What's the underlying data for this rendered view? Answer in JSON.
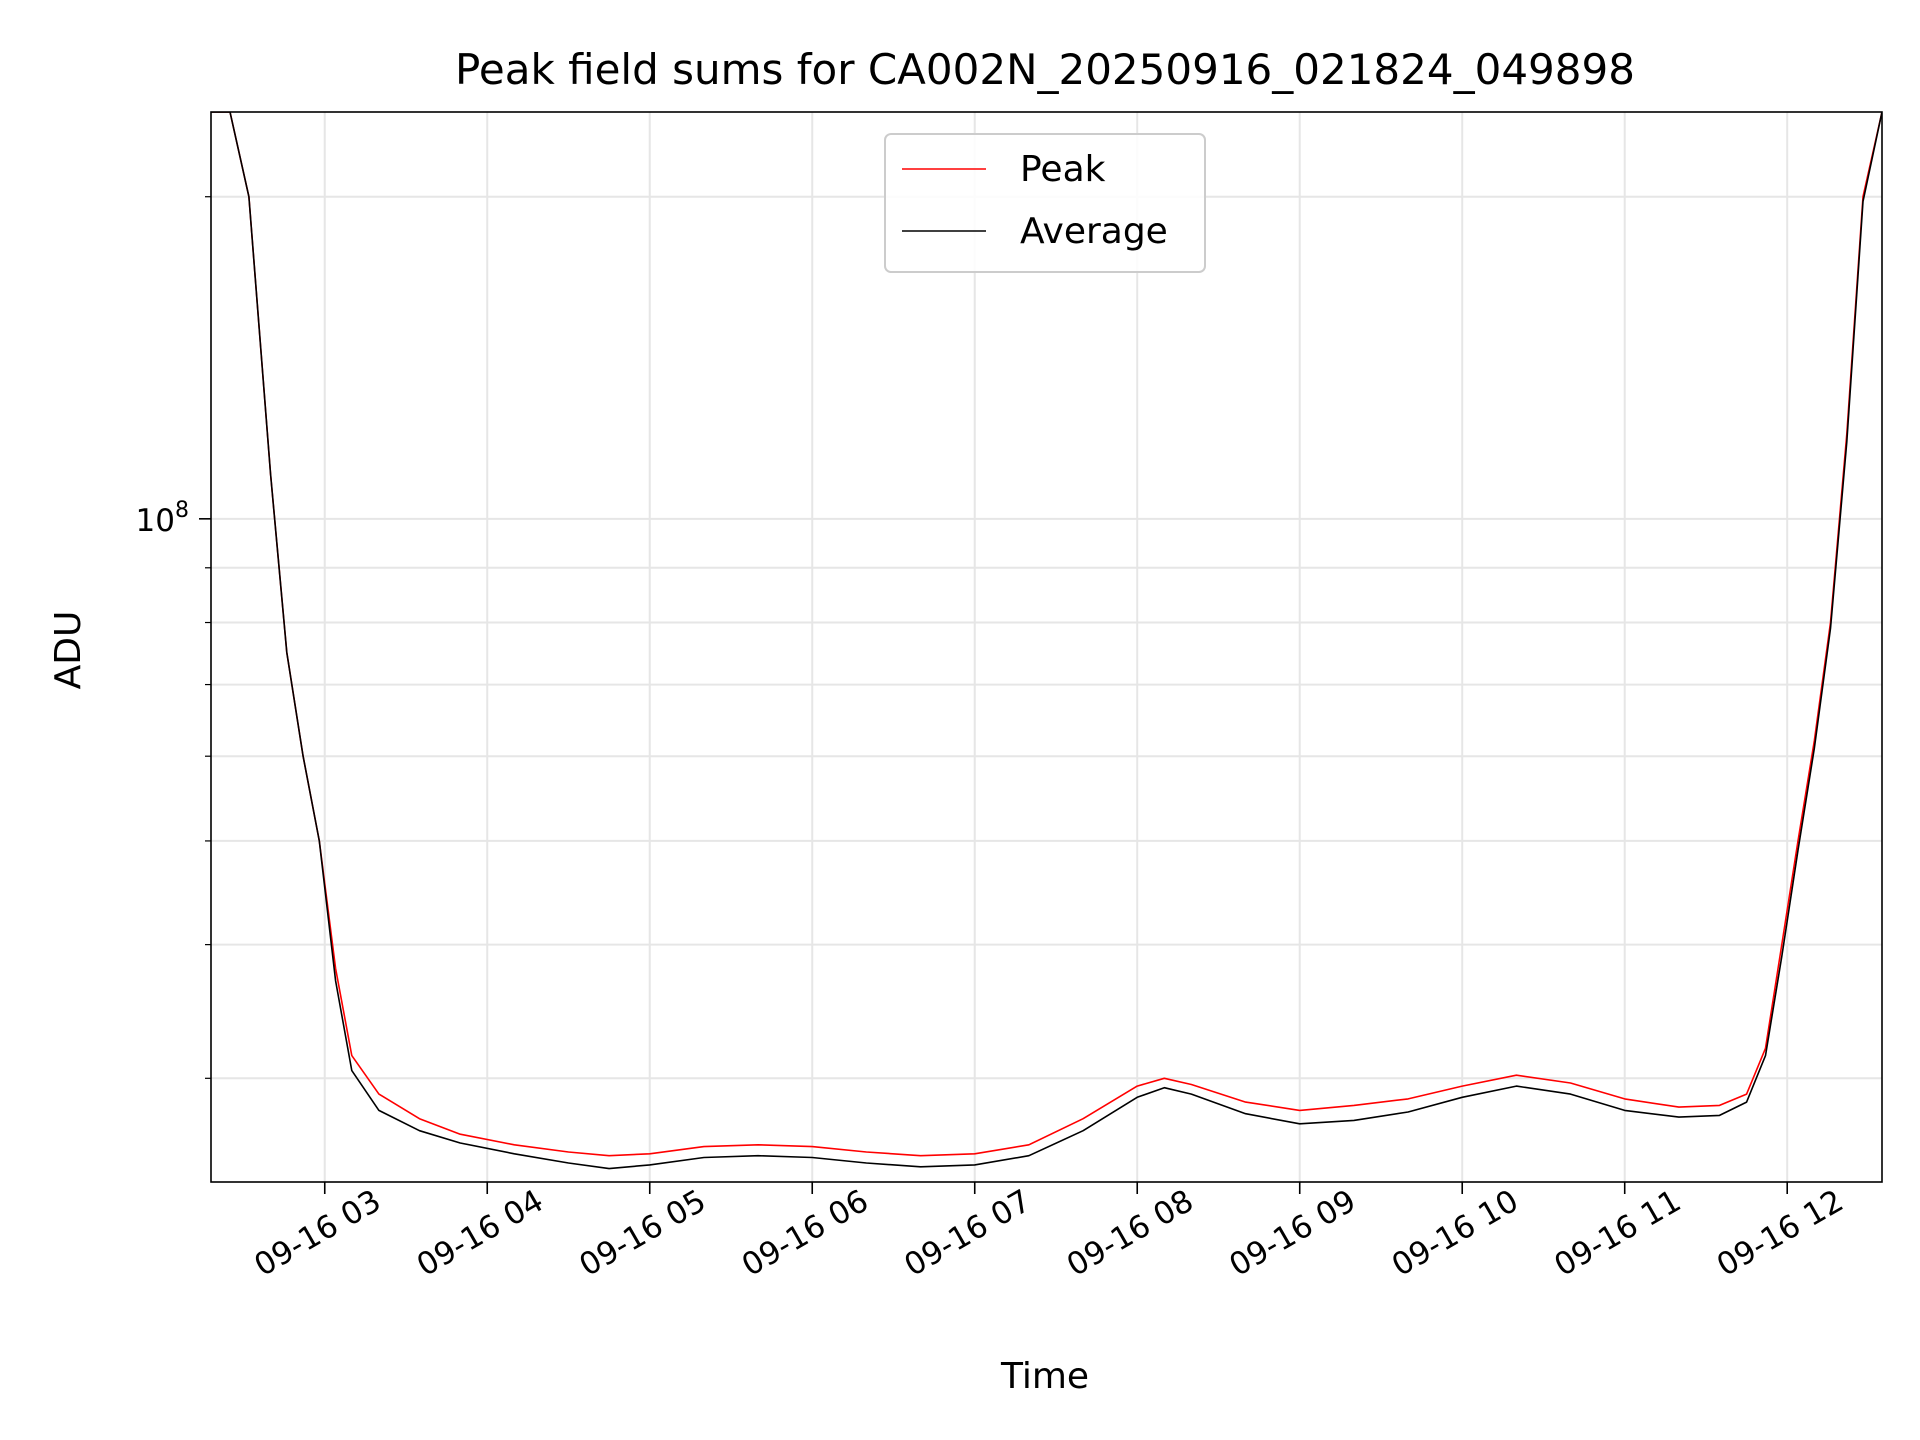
{
  "chart_data": {
    "type": "line",
    "title": "Peak field sums for CA002N_20250916_021824_049898",
    "xlabel": "Time",
    "ylabel": "ADU",
    "yscale": "log",
    "xlim": [
      "09-16 02:18",
      "09-16 12:35"
    ],
    "ylim": [
      24000000,
      240000000
    ],
    "xticks": [
      "09-16 03",
      "09-16 04",
      "09-16 05",
      "09-16 06",
      "09-16 07",
      "09-16 08",
      "09-16 09",
      "09-16 10",
      "09-16 11",
      "09-16 12"
    ],
    "yticks_major": [
      {
        "value": 100000000,
        "label_base": "10",
        "label_exp": "8"
      }
    ],
    "yticks_minor": [
      30000000,
      40000000,
      50000000,
      60000000,
      70000000,
      80000000,
      90000000,
      200000000
    ],
    "grid": true,
    "legend": "upper center",
    "series": [
      {
        "name": "Peak",
        "color": "#ff0000",
        "x": [
          "09-16 02:18",
          "09-16 02:25",
          "09-16 02:32",
          "09-16 02:40",
          "09-16 02:46",
          "09-16 02:52",
          "09-16 02:58",
          "09-16 03:04",
          "09-16 03:10",
          "09-16 03:20",
          "09-16 03:35",
          "09-16 03:50",
          "09-16 04:10",
          "09-16 04:30",
          "09-16 04:45",
          "09-16 05:00",
          "09-16 05:20",
          "09-16 05:40",
          "09-16 06:00",
          "09-16 06:20",
          "09-16 06:40",
          "09-16 07:00",
          "09-16 07:20",
          "09-16 07:40",
          "09-16 08:00",
          "09-16 08:10",
          "09-16 08:20",
          "09-16 08:40",
          "09-16 09:00",
          "09-16 09:20",
          "09-16 09:40",
          "09-16 10:00",
          "09-16 10:20",
          "09-16 10:40",
          "09-16 11:00",
          "09-16 11:20",
          "09-16 11:35",
          "09-16 11:45",
          "09-16 11:52",
          "09-16 11:58",
          "09-16 12:04",
          "09-16 12:10",
          "09-16 12:16",
          "09-16 12:22",
          "09-16 12:28",
          "09-16 12:35"
        ],
        "y": [
          240000000,
          240000000,
          200000000,
          110000000,
          75000000,
          60000000,
          50000000,
          38000000,
          31500000,
          29000000,
          27500000,
          26600000,
          26000000,
          25600000,
          25400000,
          25500000,
          25900000,
          26000000,
          25900000,
          25600000,
          25400000,
          25500000,
          26000000,
          27500000,
          29500000,
          30000000,
          29600000,
          28500000,
          28000000,
          28300000,
          28700000,
          29500000,
          30200000,
          29700000,
          28700000,
          28200000,
          28300000,
          29000000,
          32000000,
          40000000,
          50000000,
          62000000,
          80000000,
          120000000,
          200000000,
          240000000
        ]
      },
      {
        "name": "Average",
        "color": "#000000",
        "x": [
          "09-16 02:18",
          "09-16 02:25",
          "09-16 02:32",
          "09-16 02:40",
          "09-16 02:46",
          "09-16 02:52",
          "09-16 02:58",
          "09-16 03:04",
          "09-16 03:10",
          "09-16 03:20",
          "09-16 03:35",
          "09-16 03:50",
          "09-16 04:10",
          "09-16 04:30",
          "09-16 04:45",
          "09-16 05:00",
          "09-16 05:20",
          "09-16 05:40",
          "09-16 06:00",
          "09-16 06:20",
          "09-16 06:40",
          "09-16 07:00",
          "09-16 07:20",
          "09-16 07:40",
          "09-16 08:00",
          "09-16 08:10",
          "09-16 08:20",
          "09-16 08:40",
          "09-16 09:00",
          "09-16 09:20",
          "09-16 09:40",
          "09-16 10:00",
          "09-16 10:20",
          "09-16 10:40",
          "09-16 11:00",
          "09-16 11:20",
          "09-16 11:35",
          "09-16 11:45",
          "09-16 11:52",
          "09-16 11:58",
          "09-16 12:04",
          "09-16 12:10",
          "09-16 12:16",
          "09-16 12:22",
          "09-16 12:28",
          "09-16 12:35"
        ],
        "y": [
          240000000,
          240000000,
          200000000,
          110000000,
          75000000,
          60000000,
          50000000,
          37000000,
          30500000,
          28000000,
          26800000,
          26100000,
          25500000,
          25000000,
          24700000,
          24900000,
          25300000,
          25400000,
          25300000,
          25000000,
          24800000,
          24900000,
          25400000,
          26800000,
          28800000,
          29400000,
          29000000,
          27800000,
          27200000,
          27400000,
          27900000,
          28800000,
          29500000,
          29000000,
          28000000,
          27600000,
          27700000,
          28500000,
          31500000,
          39000000,
          49000000,
          61000000,
          79000000,
          118000000,
          198000000,
          240000000
        ]
      }
    ]
  }
}
